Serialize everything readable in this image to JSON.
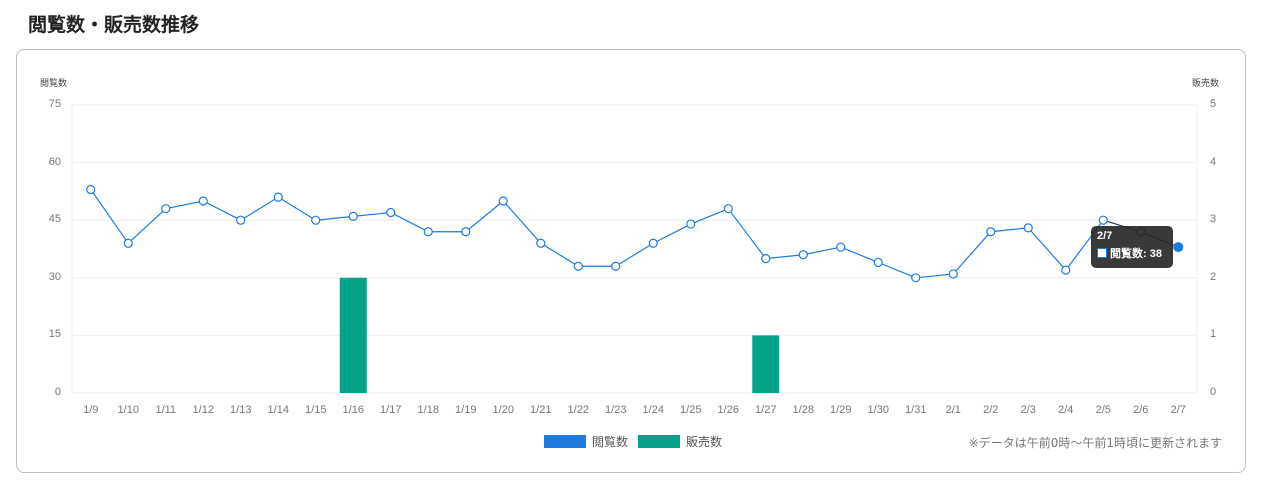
{
  "page": {
    "title": "閲覧数・販売数推移"
  },
  "axis": {
    "left_label": "閲覧数",
    "right_label": "販売数"
  },
  "legend": [
    {
      "label": "閲覧数",
      "color": "#1d7be0"
    },
    {
      "label": "販売数",
      "color": "#06a38a"
    }
  ],
  "note": "※データは午前0時〜午前1時頃に更新されます",
  "tooltip": {
    "title": "2/7",
    "label": "閲覧数: 38"
  },
  "chart_data": {
    "type": "bar+line",
    "title": "閲覧数・販売数推移",
    "categories": [
      "1/9",
      "1/10",
      "1/11",
      "1/12",
      "1/13",
      "1/14",
      "1/15",
      "1/16",
      "1/17",
      "1/18",
      "1/19",
      "1/20",
      "1/21",
      "1/22",
      "1/23",
      "1/24",
      "1/25",
      "1/26",
      "1/27",
      "1/28",
      "1/29",
      "1/30",
      "1/31",
      "2/1",
      "2/2",
      "2/3",
      "2/4",
      "2/5",
      "2/6",
      "2/7"
    ],
    "series": [
      {
        "name": "閲覧数",
        "type": "line",
        "axis": "left",
        "color": "#1d7be0",
        "values": [
          53,
          39,
          48,
          50,
          45,
          51,
          45,
          46,
          47,
          42,
          42,
          50,
          39,
          33,
          33,
          39,
          44,
          48,
          35,
          36,
          38,
          34,
          30,
          31,
          42,
          43,
          32,
          45,
          42,
          38
        ]
      },
      {
        "name": "販売数",
        "type": "bar",
        "axis": "right",
        "color": "#06a38a",
        "values": [
          0,
          0,
          0,
          0,
          0,
          0,
          0,
          2,
          0,
          0,
          0,
          0,
          0,
          0,
          0,
          0,
          0,
          0,
          1,
          0,
          0,
          0,
          0,
          0,
          0,
          0,
          0,
          0,
          0,
          0
        ]
      }
    ],
    "ylabel": "閲覧数",
    "y2label": "販売数",
    "ylim": [
      0,
      75
    ],
    "yticks": [
      0,
      15,
      30,
      45,
      60,
      75
    ],
    "y2lim": [
      0,
      5
    ],
    "y2ticks": [
      0,
      1,
      2,
      3,
      4,
      5
    ],
    "grid": true,
    "legend_position": "bottom"
  }
}
